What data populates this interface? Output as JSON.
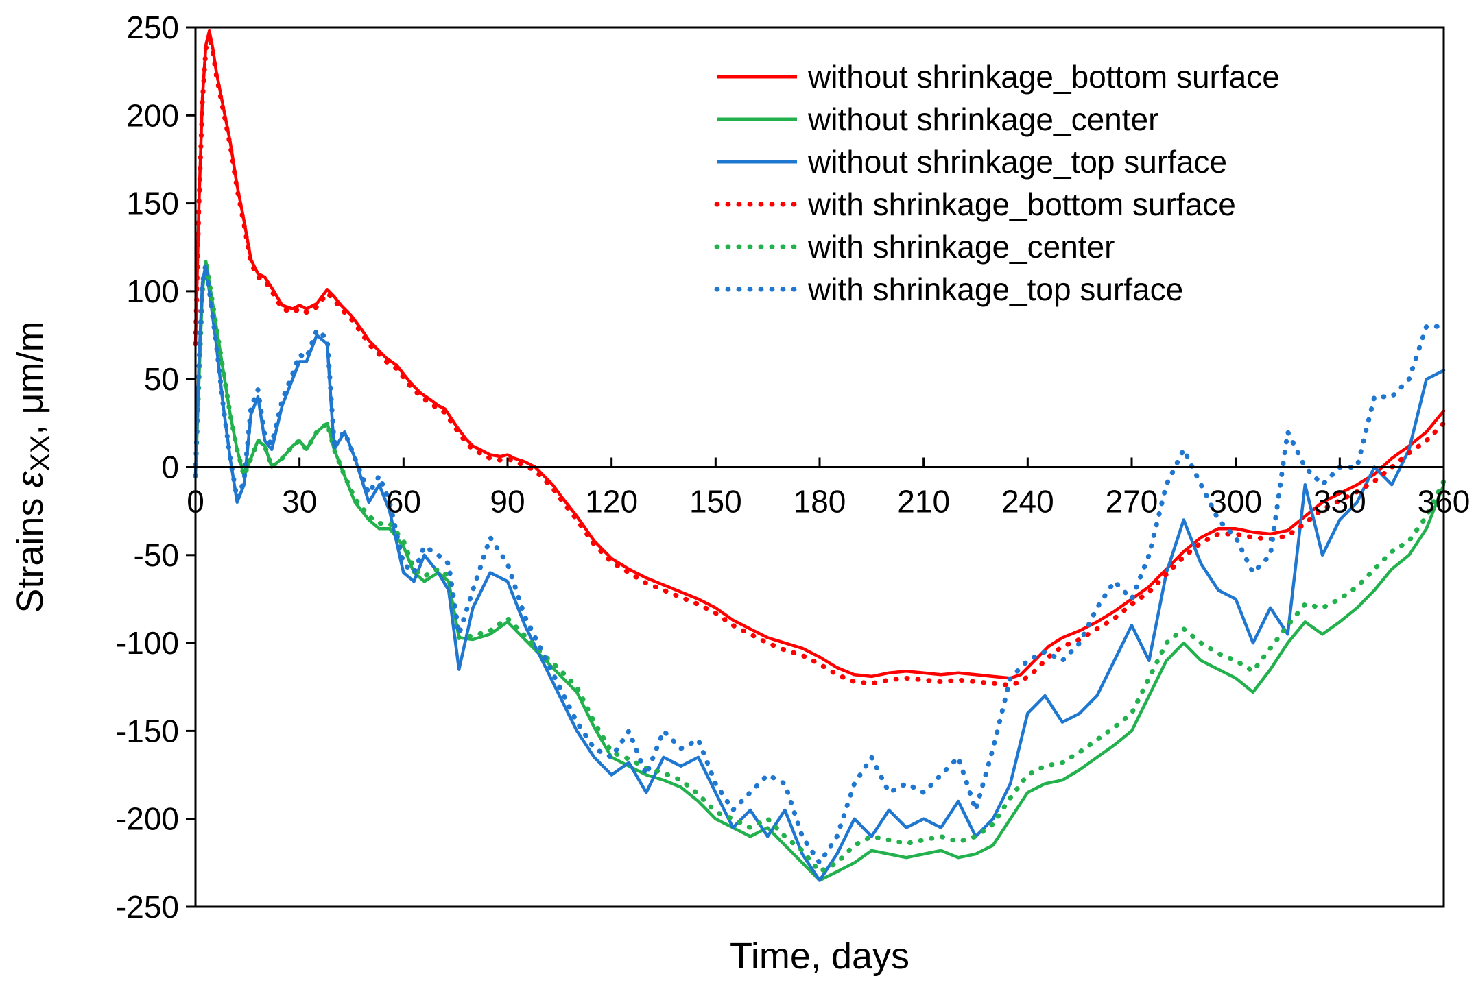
{
  "chart_data": {
    "type": "line",
    "title": "",
    "xlabel": "Time, days",
    "ylabel": {
      "prefix": "Strains ",
      "symbol": "ε",
      "subscript": "XX",
      "suffix": ", μm/m"
    },
    "xlim": [
      0,
      360
    ],
    "ylim": [
      -250,
      250
    ],
    "xticks": [
      0,
      30,
      60,
      90,
      120,
      150,
      180,
      210,
      240,
      270,
      300,
      330,
      360
    ],
    "xtick_labels": [
      "0",
      "30",
      "60",
      "90",
      "120",
      "150",
      "180",
      "210",
      "240",
      "270",
      "300",
      "330",
      "360"
    ],
    "yticks": [
      250,
      200,
      150,
      100,
      50,
      0,
      -50,
      -100,
      -150,
      -200,
      -250
    ],
    "ytick_labels": [
      "250",
      "200",
      "150",
      "100",
      "50",
      "0",
      "-50",
      "-100",
      "-150",
      "-200",
      "-250"
    ],
    "grid": false,
    "legend_position": "top-right",
    "series": [
      {
        "name": "without shrinkage_bottom surface",
        "color": "#ff0000",
        "style": "solid",
        "x": [
          0,
          1,
          2,
          3,
          4,
          5,
          6,
          8,
          10,
          12,
          14,
          16,
          18,
          20,
          22,
          25,
          28,
          30,
          32,
          35,
          38,
          40,
          42,
          45,
          48,
          50,
          52,
          55,
          58,
          60,
          62,
          65,
          68,
          70,
          72,
          75,
          78,
          80,
          82,
          85,
          88,
          90,
          92,
          95,
          98,
          100,
          103,
          106,
          110,
          115,
          120,
          125,
          130,
          135,
          140,
          145,
          150,
          155,
          160,
          165,
          170,
          175,
          180,
          185,
          190,
          195,
          200,
          205,
          210,
          215,
          220,
          225,
          230,
          235,
          238,
          242,
          246,
          250,
          255,
          260,
          265,
          270,
          275,
          280,
          285,
          290,
          295,
          300,
          305,
          310,
          315,
          320,
          325,
          330,
          335,
          340,
          345,
          350,
          355,
          360
        ],
        "values": [
          70,
          150,
          210,
          240,
          248,
          238,
          225,
          205,
          185,
          160,
          140,
          118,
          110,
          108,
          102,
          92,
          90,
          92,
          90,
          93,
          101,
          97,
          92,
          86,
          78,
          72,
          68,
          62,
          58,
          53,
          48,
          42,
          38,
          35,
          33,
          24,
          16,
          12,
          10,
          7,
          6,
          7,
          5,
          3,
          0,
          -4,
          -10,
          -18,
          -28,
          -42,
          -52,
          -58,
          -63,
          -67,
          -71,
          -75,
          -80,
          -87,
          -92,
          -97,
          -100,
          -103,
          -108,
          -114,
          -118,
          -119,
          -117,
          -116,
          -117,
          -118,
          -117,
          -118,
          -119,
          -120,
          -118,
          -110,
          -102,
          -97,
          -93,
          -88,
          -82,
          -75,
          -68,
          -58,
          -48,
          -40,
          -35,
          -35,
          -37,
          -38,
          -36,
          -28,
          -20,
          -15,
          -10,
          -4,
          5,
          12,
          20,
          32
        ]
      },
      {
        "name": "without shrinkage_center",
        "color": "#22b14c",
        "style": "solid",
        "x": [
          0,
          1,
          2,
          3,
          4,
          6,
          8,
          10,
          12,
          14,
          16,
          18,
          20,
          22,
          25,
          28,
          30,
          32,
          35,
          38,
          40,
          43,
          46,
          50,
          53,
          56,
          60,
          63,
          66,
          70,
          73,
          76,
          80,
          85,
          90,
          95,
          100,
          105,
          110,
          115,
          120,
          125,
          130,
          135,
          140,
          145,
          150,
          155,
          160,
          165,
          170,
          175,
          180,
          185,
          190,
          195,
          200,
          205,
          210,
          215,
          220,
          225,
          230,
          235,
          240,
          245,
          250,
          255,
          260,
          265,
          270,
          275,
          280,
          285,
          290,
          295,
          300,
          305,
          310,
          315,
          320,
          325,
          330,
          335,
          340,
          345,
          350,
          355,
          360
        ],
        "values": [
          -5,
          50,
          100,
          117,
          105,
          80,
          55,
          30,
          10,
          -5,
          5,
          15,
          12,
          0,
          5,
          12,
          15,
          10,
          20,
          25,
          10,
          -5,
          -20,
          -30,
          -35,
          -35,
          -45,
          -60,
          -65,
          -60,
          -65,
          -97,
          -98,
          -95,
          -88,
          -98,
          -108,
          -118,
          -128,
          -148,
          -165,
          -170,
          -175,
          -178,
          -182,
          -190,
          -200,
          -205,
          -210,
          -205,
          -215,
          -225,
          -235,
          -230,
          -225,
          -218,
          -220,
          -222,
          -220,
          -218,
          -222,
          -220,
          -215,
          -200,
          -185,
          -180,
          -178,
          -172,
          -165,
          -158,
          -150,
          -130,
          -110,
          -100,
          -110,
          -115,
          -120,
          -128,
          -115,
          -100,
          -88,
          -95,
          -88,
          -80,
          -70,
          -58,
          -50,
          -35,
          -10
        ]
      },
      {
        "name": "without shrinkage_top surface",
        "color": "#1f77d0",
        "style": "solid",
        "x": [
          0,
          1,
          2,
          3,
          4,
          6,
          8,
          10,
          12,
          14,
          16,
          18,
          20,
          22,
          25,
          28,
          30,
          32,
          35,
          38,
          40,
          43,
          46,
          50,
          53,
          56,
          60,
          63,
          66,
          70,
          73,
          76,
          80,
          85,
          90,
          95,
          100,
          105,
          110,
          115,
          120,
          125,
          130,
          135,
          140,
          145,
          150,
          155,
          160,
          165,
          170,
          175,
          180,
          185,
          190,
          195,
          200,
          205,
          210,
          215,
          220,
          225,
          230,
          235,
          240,
          245,
          250,
          255,
          260,
          265,
          270,
          275,
          280,
          285,
          290,
          295,
          300,
          305,
          310,
          315,
          320,
          325,
          330,
          335,
          340,
          345,
          350,
          355,
          360
        ],
        "values": [
          -5,
          60,
          105,
          115,
          100,
          70,
          35,
          5,
          -20,
          -10,
          30,
          40,
          15,
          10,
          35,
          50,
          60,
          60,
          75,
          70,
          10,
          20,
          5,
          -20,
          -10,
          -25,
          -60,
          -65,
          -50,
          -60,
          -70,
          -115,
          -80,
          -60,
          -65,
          -90,
          -110,
          -130,
          -150,
          -165,
          -175,
          -168,
          -185,
          -165,
          -170,
          -165,
          -185,
          -205,
          -195,
          -210,
          -195,
          -220,
          -235,
          -220,
          -200,
          -210,
          -195,
          -205,
          -200,
          -205,
          -190,
          -210,
          -200,
          -180,
          -140,
          -130,
          -145,
          -140,
          -130,
          -110,
          -90,
          -110,
          -60,
          -30,
          -55,
          -70,
          -75,
          -100,
          -80,
          -95,
          -10,
          -50,
          -30,
          -20,
          0,
          -10,
          10,
          50,
          55
        ]
      },
      {
        "name": "with shrinkage_bottom surface",
        "color": "#ff0000",
        "style": "dotted",
        "x": [
          0,
          1,
          2,
          3,
          4,
          5,
          6,
          8,
          10,
          12,
          14,
          16,
          18,
          20,
          22,
          25,
          28,
          30,
          32,
          35,
          38,
          40,
          42,
          45,
          48,
          50,
          52,
          55,
          58,
          60,
          62,
          65,
          68,
          70,
          72,
          75,
          78,
          80,
          82,
          85,
          88,
          90,
          92,
          95,
          98,
          100,
          103,
          106,
          110,
          115,
          120,
          125,
          130,
          135,
          140,
          145,
          150,
          155,
          160,
          165,
          170,
          175,
          180,
          185,
          190,
          195,
          200,
          205,
          210,
          215,
          220,
          225,
          230,
          235,
          238,
          242,
          246,
          250,
          255,
          260,
          265,
          270,
          275,
          280,
          285,
          290,
          295,
          300,
          305,
          310,
          315,
          320,
          325,
          330,
          335,
          340,
          345,
          350,
          355,
          360
        ],
        "values": [
          70,
          150,
          208,
          238,
          246,
          236,
          223,
          203,
          183,
          158,
          138,
          116,
          108,
          106,
          100,
          90,
          88,
          90,
          88,
          91,
          99,
          95,
          90,
          84,
          76,
          70,
          66,
          60,
          56,
          51,
          46,
          40,
          36,
          33,
          31,
          22,
          14,
          10,
          8,
          5,
          4,
          5,
          3,
          1,
          -2,
          -6,
          -12,
          -20,
          -30,
          -44,
          -54,
          -60,
          -66,
          -70,
          -74,
          -78,
          -83,
          -90,
          -95,
          -100,
          -104,
          -107,
          -112,
          -118,
          -122,
          -123,
          -121,
          -120,
          -121,
          -122,
          -121,
          -122,
          -123,
          -124,
          -122,
          -116,
          -108,
          -102,
          -98,
          -92,
          -86,
          -78,
          -71,
          -61,
          -51,
          -43,
          -38,
          -38,
          -40,
          -41,
          -39,
          -32,
          -24,
          -19,
          -14,
          -8,
          0,
          8,
          15,
          25
        ]
      },
      {
        "name": "with shrinkage_center",
        "color": "#22b14c",
        "style": "dotted",
        "x": [
          0,
          1,
          2,
          3,
          4,
          6,
          8,
          10,
          12,
          14,
          16,
          18,
          20,
          22,
          25,
          28,
          30,
          32,
          35,
          38,
          40,
          43,
          46,
          50,
          53,
          56,
          60,
          63,
          66,
          70,
          73,
          76,
          80,
          85,
          90,
          95,
          100,
          105,
          110,
          115,
          120,
          125,
          130,
          135,
          140,
          145,
          150,
          155,
          160,
          165,
          170,
          175,
          180,
          185,
          190,
          195,
          200,
          205,
          210,
          215,
          220,
          225,
          230,
          235,
          240,
          245,
          250,
          255,
          260,
          265,
          270,
          275,
          280,
          285,
          290,
          295,
          300,
          305,
          310,
          315,
          320,
          325,
          330,
          335,
          340,
          345,
          350,
          355,
          360
        ],
        "values": [
          -5,
          50,
          100,
          117,
          105,
          80,
          55,
          30,
          10,
          -5,
          5,
          15,
          12,
          0,
          5,
          12,
          15,
          10,
          20,
          25,
          10,
          -5,
          -18,
          -28,
          -32,
          -32,
          -42,
          -58,
          -62,
          -58,
          -62,
          -97,
          -96,
          -93,
          -86,
          -96,
          -106,
          -115,
          -125,
          -145,
          -162,
          -166,
          -171,
          -174,
          -178,
          -186,
          -196,
          -200,
          -205,
          -200,
          -210,
          -218,
          -230,
          -225,
          -215,
          -210,
          -212,
          -214,
          -212,
          -210,
          -213,
          -210,
          -203,
          -188,
          -175,
          -170,
          -168,
          -162,
          -155,
          -148,
          -140,
          -120,
          -100,
          -92,
          -100,
          -106,
          -110,
          -116,
          -103,
          -90,
          -78,
          -80,
          -75,
          -68,
          -58,
          -48,
          -42,
          -28,
          -8
        ]
      },
      {
        "name": "with shrinkage_top surface",
        "color": "#1f77d0",
        "style": "dotted",
        "x": [
          0,
          1,
          2,
          3,
          4,
          6,
          8,
          10,
          12,
          14,
          16,
          18,
          20,
          22,
          25,
          28,
          30,
          32,
          35,
          38,
          40,
          43,
          46,
          50,
          53,
          56,
          60,
          63,
          66,
          70,
          73,
          76,
          80,
          85,
          90,
          95,
          100,
          105,
          110,
          115,
          120,
          125,
          130,
          135,
          140,
          145,
          150,
          155,
          160,
          165,
          170,
          175,
          180,
          185,
          190,
          195,
          200,
          205,
          210,
          215,
          220,
          225,
          230,
          235,
          240,
          245,
          250,
          255,
          260,
          265,
          270,
          275,
          280,
          285,
          290,
          295,
          300,
          305,
          310,
          315,
          320,
          325,
          330,
          335,
          340,
          345,
          350,
          355,
          360
        ],
        "values": [
          -5,
          60,
          105,
          115,
          100,
          70,
          35,
          5,
          -18,
          -8,
          34,
          44,
          18,
          13,
          38,
          53,
          64,
          62,
          78,
          73,
          14,
          20,
          5,
          -15,
          -5,
          -20,
          -55,
          -60,
          -45,
          -50,
          -55,
          -95,
          -70,
          -40,
          -55,
          -85,
          -105,
          -125,
          -145,
          -160,
          -165,
          -150,
          -175,
          -150,
          -160,
          -155,
          -180,
          -195,
          -185,
          -175,
          -180,
          -210,
          -225,
          -210,
          -180,
          -165,
          -185,
          -180,
          -185,
          -175,
          -165,
          -195,
          -160,
          -120,
          -110,
          -105,
          -110,
          -100,
          -80,
          -65,
          -75,
          -50,
          -10,
          10,
          -10,
          -30,
          -40,
          -60,
          -50,
          20,
          0,
          -10,
          0,
          0,
          40,
          40,
          50,
          80,
          80
        ]
      }
    ]
  }
}
